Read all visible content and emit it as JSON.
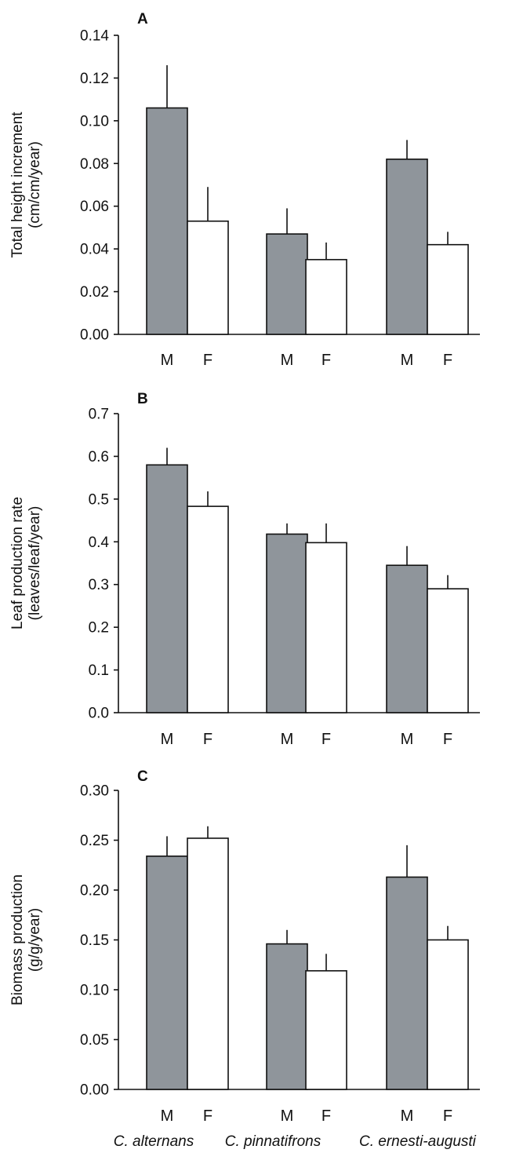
{
  "chart_data": [
    {
      "panel": "A",
      "type": "bar",
      "ylabel": [
        "Total height increment",
        "(cm/cm/year)"
      ],
      "ylim": [
        0,
        0.14
      ],
      "yticks": [
        "0.00",
        "0.02",
        "0.04",
        "0.06",
        "0.08",
        "0.10",
        "0.12",
        "0.14"
      ],
      "categories": [
        "M",
        "F",
        "M",
        "F",
        "M",
        "F"
      ],
      "values": [
        0.106,
        0.053,
        0.047,
        0.035,
        0.082,
        0.042
      ],
      "errors": [
        0.02,
        0.016,
        0.012,
        0.008,
        0.009,
        0.006
      ],
      "sex": [
        "M",
        "F",
        "M",
        "F",
        "M",
        "F"
      ]
    },
    {
      "panel": "B",
      "type": "bar",
      "ylabel": [
        "Leaf production rate",
        "(leaves/leaf/year)"
      ],
      "ylim": [
        0,
        0.7
      ],
      "yticks": [
        "0.0",
        "0.1",
        "0.2",
        "0.3",
        "0.4",
        "0.5",
        "0.6",
        "0.7"
      ],
      "categories": [
        "M",
        "F",
        "M",
        "F",
        "M",
        "F"
      ],
      "values": [
        0.58,
        0.483,
        0.418,
        0.398,
        0.345,
        0.29
      ],
      "errors": [
        0.04,
        0.035,
        0.025,
        0.045,
        0.045,
        0.032
      ],
      "sex": [
        "M",
        "F",
        "M",
        "F",
        "M",
        "F"
      ]
    },
    {
      "panel": "C",
      "type": "bar",
      "ylabel": [
        "Biomass production",
        "(g/g/year)"
      ],
      "ylim": [
        0,
        0.3
      ],
      "yticks": [
        "0.00",
        "0.05",
        "0.10",
        "0.15",
        "0.20",
        "0.25",
        "0.30"
      ],
      "categories": [
        "M",
        "F",
        "M",
        "F",
        "M",
        "F"
      ],
      "values": [
        0.234,
        0.252,
        0.146,
        0.119,
        0.213,
        0.15
      ],
      "errors": [
        0.02,
        0.012,
        0.014,
        0.017,
        0.032,
        0.014
      ],
      "sex": [
        "M",
        "F",
        "M",
        "F",
        "M",
        "F"
      ]
    }
  ],
  "species": [
    "C. alternans",
    "C. pinnatifrons",
    "C. ernesti-augusti"
  ],
  "colors": {
    "male_fill": "#8f959b",
    "female_fill": "#ffffff",
    "stroke": "#111111"
  }
}
